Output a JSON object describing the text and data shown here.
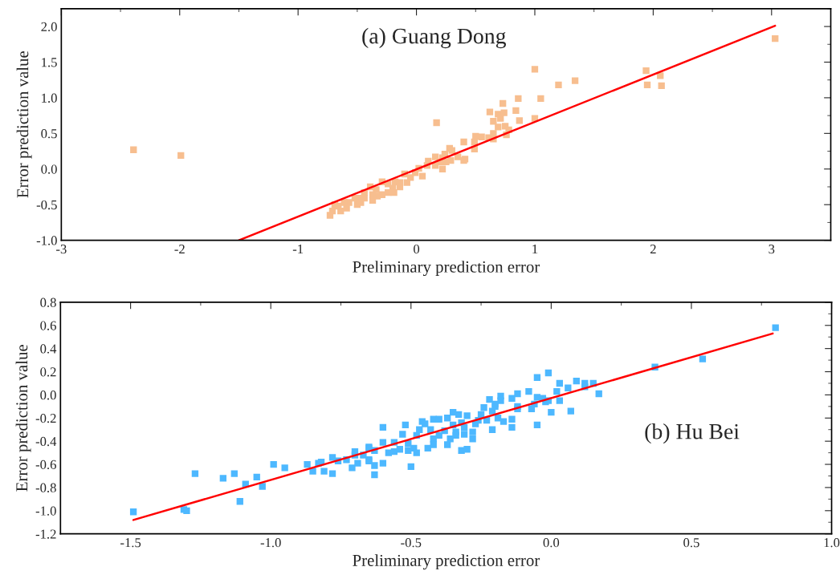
{
  "chart_data": [
    {
      "type": "scatter",
      "xlabel": "Preliminary prediction error",
      "ylabel": "Error prediction value",
      "annotations": [
        "(a) Guang Dong"
      ],
      "xlim": [
        -3,
        3.5
      ],
      "ylim": [
        -1.0,
        2.25
      ],
      "xticks": [
        -3,
        -2,
        -1,
        0,
        1,
        2,
        3
      ],
      "yticks": [
        {
          "value": -1,
          "label": "-1.0"
        },
        -0.5,
        {
          "value": 0,
          "label": "0.0"
        },
        0.5,
        {
          "value": 1,
          "label": "1.0"
        },
        1.5,
        {
          "value": 2,
          "label": "2.0"
        }
      ],
      "grid": false,
      "legend": false,
      "series": [
        {
          "marker": "square",
          "color": "#f7be8f",
          "x": [
            -2.39,
            -1.99,
            1.0,
            1.2,
            1.34,
            1.05,
            1.0,
            1.94,
            2.06,
            1.95,
            2.07,
            3.03,
            0.86,
            0.73,
            0.62,
            0.69,
            0.74,
            0.84,
            0.65,
            0.71,
            0.87,
            0.69,
            0.75,
            0.78,
            0.76,
            0.17,
            0.65,
            0.5,
            0.55,
            0.61,
            0.65,
            0.4,
            0.49,
            0.28,
            0.3,
            0.24,
            0.35,
            0.41,
            0.16,
            0.1,
            0.2,
            0.22,
            0.16,
            0.09,
            0.02,
            0.05,
            -0.01,
            -0.1,
            -0.05,
            -0.08,
            -0.14,
            -0.18,
            -0.14,
            -0.24,
            -0.29,
            -0.2,
            -0.29,
            -0.24,
            -0.19,
            -0.34,
            -0.39,
            -0.37,
            -0.33,
            -0.37,
            -0.44,
            -0.44,
            -0.49,
            -0.47,
            -0.5,
            -0.52,
            -0.57,
            -0.61,
            -0.66,
            -0.69,
            -0.59,
            -0.64,
            -0.71,
            -0.73,
            0.4,
            0.22,
            0.29,
            0.49,
            0.25
          ],
          "values": [
            0.27,
            0.19,
            1.4,
            1.18,
            1.24,
            0.99,
            0.71,
            1.38,
            1.31,
            1.18,
            1.17,
            1.83,
            0.99,
            0.92,
            0.8,
            0.77,
            0.79,
            0.82,
            0.67,
            0.71,
            0.68,
            0.59,
            0.6,
            0.55,
            0.48,
            0.65,
            0.5,
            0.46,
            0.45,
            0.44,
            0.42,
            0.38,
            0.28,
            0.29,
            0.26,
            0.21,
            0.17,
            0.14,
            0.17,
            0.11,
            0.1,
            0.0,
            0.05,
            0.05,
            0.01,
            -0.1,
            -0.05,
            -0.07,
            -0.12,
            -0.19,
            -0.19,
            -0.18,
            -0.25,
            -0.21,
            -0.18,
            -0.27,
            -0.36,
            -0.33,
            -0.33,
            -0.29,
            -0.25,
            -0.36,
            -0.38,
            -0.44,
            -0.33,
            -0.41,
            -0.41,
            -0.47,
            -0.5,
            -0.41,
            -0.47,
            -0.47,
            -0.52,
            -0.5,
            -0.55,
            -0.59,
            -0.59,
            -0.65,
            0.12,
            0.16,
            0.12,
            0.38,
            0.1
          ]
        },
        {
          "type": "line",
          "color": "#ff0000",
          "line_style": "solid",
          "x": [
            -1.5,
            3.03
          ],
          "values": [
            -1.0,
            2.01
          ]
        }
      ]
    },
    {
      "type": "scatter",
      "xlabel": "Preliminary prediction error",
      "ylabel": "Error prediction value",
      "annotations": [
        "(b) Hu Bei"
      ],
      "xlim": [
        -1.75,
        1.0
      ],
      "ylim": [
        -1.2,
        0.8
      ],
      "xticks": [
        -1.5,
        {
          "value": -1,
          "label": "-1.0"
        },
        -0.5,
        {
          "value": 0,
          "label": "0.0"
        },
        0.5,
        {
          "value": 1,
          "label": "1.0"
        }
      ],
      "yticks": [
        -1.2,
        {
          "value": -1,
          "label": "-1.0"
        },
        -0.8,
        -0.6,
        -0.4,
        -0.2,
        {
          "value": 0,
          "label": "0.0"
        },
        0.2,
        0.4,
        0.6,
        0.8
      ],
      "grid": false,
      "legend": false,
      "series": [
        {
          "marker": "square",
          "color": "#4db8ff",
          "x": [
            -1.49,
            -1.31,
            -1.3,
            -1.27,
            -1.17,
            -1.13,
            -1.11,
            -1.09,
            -1.05,
            -1.03,
            -0.99,
            -0.95,
            -0.87,
            -0.85,
            -0.83,
            -0.82,
            -0.81,
            -0.78,
            -0.78,
            -0.76,
            -0.73,
            -0.71,
            -0.7,
            -0.7,
            -0.69,
            -0.67,
            -0.65,
            -0.65,
            -0.65,
            -0.63,
            -0.65,
            -0.63,
            -0.63,
            -0.6,
            -0.6,
            -0.6,
            -0.58,
            -0.56,
            -0.56,
            -0.54,
            -0.53,
            -0.52,
            -0.51,
            -0.5,
            -0.51,
            -0.49,
            -0.48,
            -0.48,
            -0.47,
            -0.46,
            -0.45,
            -0.44,
            -0.43,
            -0.42,
            -0.42,
            -0.42,
            -0.4,
            -0.4,
            -0.38,
            -0.37,
            -0.37,
            -0.36,
            -0.35,
            -0.35,
            -0.34,
            -0.34,
            -0.33,
            -0.32,
            -0.32,
            -0.31,
            -0.3,
            -0.31,
            -0.3,
            -0.28,
            -0.28,
            -0.27,
            -0.26,
            -0.25,
            -0.24,
            -0.23,
            -0.22,
            -0.21,
            -0.21,
            -0.2,
            -0.2,
            -0.19,
            -0.18,
            -0.18,
            -0.17,
            -0.14,
            -0.14,
            -0.14,
            -0.12,
            -0.12,
            -0.12,
            -0.08,
            -0.07,
            -0.06,
            -0.05,
            -0.05,
            -0.05,
            -0.03,
            -0.02,
            -0.01,
            -0.01,
            0.0,
            0.02,
            0.03,
            0.03,
            0.06,
            0.07,
            0.09,
            0.12,
            0.12,
            0.15,
            0.17,
            0.37,
            0.54,
            0.8
          ],
          "values": [
            -1.01,
            -0.99,
            -1.0,
            -0.68,
            -0.72,
            -0.68,
            -0.92,
            -0.77,
            -0.71,
            -0.79,
            -0.6,
            -0.63,
            -0.6,
            -0.66,
            -0.59,
            -0.58,
            -0.66,
            -0.54,
            -0.68,
            -0.57,
            -0.56,
            -0.63,
            -0.52,
            -0.49,
            -0.59,
            -0.52,
            -0.45,
            -0.56,
            -0.46,
            -0.48,
            -0.57,
            -0.61,
            -0.69,
            -0.28,
            -0.41,
            -0.59,
            -0.5,
            -0.41,
            -0.49,
            -0.47,
            -0.34,
            -0.26,
            -0.42,
            -0.62,
            -0.48,
            -0.46,
            -0.5,
            -0.35,
            -0.3,
            -0.23,
            -0.25,
            -0.46,
            -0.3,
            -0.38,
            -0.43,
            -0.21,
            -0.35,
            -0.21,
            -0.31,
            -0.43,
            -0.2,
            -0.38,
            -0.15,
            -0.26,
            -0.32,
            -0.35,
            -0.17,
            -0.24,
            -0.48,
            -0.34,
            -0.47,
            -0.28,
            -0.18,
            -0.32,
            -0.38,
            -0.25,
            -0.22,
            -0.17,
            -0.11,
            -0.22,
            -0.04,
            -0.3,
            -0.14,
            -0.1,
            -0.08,
            -0.2,
            -0.05,
            -0.01,
            -0.23,
            -0.28,
            -0.21,
            -0.03,
            -0.1,
            -0.12,
            0.01,
            0.03,
            -0.12,
            -0.08,
            -0.26,
            0.15,
            -0.02,
            -0.03,
            -0.06,
            0.19,
            -0.05,
            -0.15,
            0.03,
            -0.05,
            0.1,
            0.06,
            -0.14,
            0.12,
            0.07,
            0.1,
            0.1,
            0.01,
            0.24,
            0.31,
            0.58
          ]
        },
        {
          "type": "line",
          "color": "#ff0000",
          "line_style": "solid",
          "x": [
            -1.49,
            0.79
          ],
          "values": [
            -1.08,
            0.53
          ]
        }
      ]
    }
  ]
}
